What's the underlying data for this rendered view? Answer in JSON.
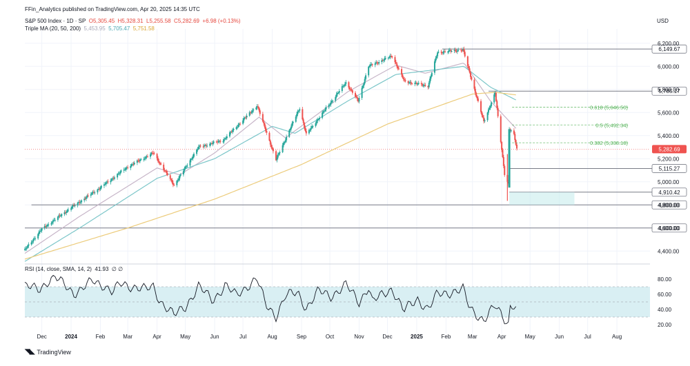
{
  "header": {
    "published_line": "FFin_Analytics published on TradingView.com, Apr 20, 2025 14:35 UTC",
    "symbol": "S&P 500 Index · 1D · SP",
    "open": "O5,305.45",
    "high": "H5,328.31",
    "low": "L5,255.58",
    "close": "C5,282.69",
    "change": "+6.98 (+0.13%)",
    "ma_label": "Triple MA (20, 50, 200)",
    "ma20_value": "5,453.95",
    "ma50_value": "5,705.47",
    "ma200_value": "5,751.58",
    "currency": "USD",
    "rsi_label": "RSI (14, close, SMA, 14, 2)",
    "rsi_value": "41.93",
    "rsi_suffix": "∅ ∅"
  },
  "footer": {
    "brand": "TradingView"
  },
  "colors": {
    "up": "#26a69a",
    "down": "#ef5350",
    "ma20": "#c7b5c8",
    "ma50": "#7cc6c9",
    "ma200": "#eccb7a",
    "fib": "#4caf50",
    "rsi_band": "#d9eff3",
    "level": "#787b86"
  },
  "chart_data": [
    {
      "type": "candlestick",
      "title": "S&P 500 Index · 1D",
      "ylabel": "USD",
      "ylim": [
        4300,
        6300
      ],
      "x_dates": [
        "2023-11-13",
        "2025-09-05"
      ],
      "yticks": [
        "4,400.00",
        "4,600.00",
        "4,800.00",
        "5,000.00",
        "5,200.00",
        "5,400.00",
        "5,600.00",
        "5,800.00",
        "6,000.00",
        "6,200.00"
      ],
      "ytick_values": [
        4400,
        4600,
        4800,
        5000,
        5200,
        5400,
        5600,
        5800,
        6000,
        6200
      ],
      "month_labels": [
        {
          "label": "Dec",
          "date": "2023-12-01"
        },
        {
          "label": "2024",
          "date": "2024-01-01"
        },
        {
          "label": "Feb",
          "date": "2024-02-01"
        },
        {
          "label": "Mar",
          "date": "2024-03-01"
        },
        {
          "label": "Apr",
          "date": "2024-04-01"
        },
        {
          "label": "May",
          "date": "2024-05-01"
        },
        {
          "label": "Jun",
          "date": "2024-06-01"
        },
        {
          "label": "Jul",
          "date": "2024-07-01"
        },
        {
          "label": "Aug",
          "date": "2024-08-01"
        },
        {
          "label": "Sep",
          "date": "2024-09-01"
        },
        {
          "label": "Oct",
          "date": "2024-10-01"
        },
        {
          "label": "Nov",
          "date": "2024-11-01"
        },
        {
          "label": "Dec",
          "date": "2024-12-01"
        },
        {
          "label": "2025",
          "date": "2025-01-01"
        },
        {
          "label": "Feb",
          "date": "2025-02-01"
        },
        {
          "label": "Mar",
          "date": "2025-03-01"
        },
        {
          "label": "Apr",
          "date": "2025-04-01"
        },
        {
          "label": "May",
          "date": "2025-05-01"
        },
        {
          "label": "Jun",
          "date": "2025-06-01"
        },
        {
          "label": "Jul",
          "date": "2025-07-01"
        },
        {
          "label": "Aug",
          "date": "2025-08-01"
        }
      ],
      "price_anchors": [
        [
          "2023-11-13",
          4410
        ],
        [
          "2023-12-01",
          4590
        ],
        [
          "2023-12-31",
          4770
        ],
        [
          "2024-02-01",
          4950
        ],
        [
          "2024-03-01",
          5130
        ],
        [
          "2024-03-28",
          5250
        ],
        [
          "2024-04-19",
          4970
        ],
        [
          "2024-05-15",
          5300
        ],
        [
          "2024-06-10",
          5360
        ],
        [
          "2024-07-16",
          5660
        ],
        [
          "2024-08-05",
          5190
        ],
        [
          "2024-08-30",
          5640
        ],
        [
          "2024-09-06",
          5410
        ],
        [
          "2024-10-18",
          5860
        ],
        [
          "2024-10-31",
          5700
        ],
        [
          "2024-11-11",
          6000
        ],
        [
          "2024-12-06",
          6090
        ],
        [
          "2024-12-19",
          5870
        ],
        [
          "2025-01-13",
          5830
        ],
        [
          "2025-01-23",
          6120
        ],
        [
          "2025-02-19",
          6144
        ],
        [
          "2025-03-13",
          5520
        ],
        [
          "2025-03-25",
          5770
        ],
        [
          "2025-04-04",
          5070
        ],
        [
          "2025-04-08",
          4980
        ],
        [
          "2025-04-09",
          5456
        ],
        [
          "2025-04-14",
          5405
        ],
        [
          "2025-04-17",
          5283
        ]
      ],
      "moving_averages": [
        {
          "name": "MA20",
          "value": 5453.95,
          "anchors": [
            [
              "2023-11-13",
              4380
            ],
            [
              "2024-01-10",
              4700
            ],
            [
              "2024-04-01",
              5120
            ],
            [
              "2024-04-25",
              5060
            ],
            [
              "2024-06-01",
              5250
            ],
            [
              "2024-07-18",
              5560
            ],
            [
              "2024-08-15",
              5380
            ],
            [
              "2024-10-20",
              5780
            ],
            [
              "2024-12-10",
              6010
            ],
            [
              "2025-01-10",
              5940
            ],
            [
              "2025-02-20",
              6030
            ],
            [
              "2025-03-20",
              5700
            ],
            [
              "2025-04-17",
              5454
            ]
          ]
        },
        {
          "name": "MA50",
          "value": 5705.47,
          "anchors": [
            [
              "2023-11-13",
              4310
            ],
            [
              "2024-01-10",
              4600
            ],
            [
              "2024-04-01",
              5030
            ],
            [
              "2024-06-01",
              5200
            ],
            [
              "2024-08-01",
              5480
            ],
            [
              "2024-08-25",
              5420
            ],
            [
              "2024-10-20",
              5700
            ],
            [
              "2024-12-10",
              5930
            ],
            [
              "2025-02-20",
              6000
            ],
            [
              "2025-03-20",
              5820
            ],
            [
              "2025-04-17",
              5705
            ]
          ]
        },
        {
          "name": "MA200",
          "value": 5751.58,
          "anchors": [
            [
              "2023-11-13",
              4330
            ],
            [
              "2024-03-01",
              4600
            ],
            [
              "2024-06-01",
              4850
            ],
            [
              "2024-09-01",
              5150
            ],
            [
              "2024-12-01",
              5500
            ],
            [
              "2025-03-01",
              5760
            ],
            [
              "2025-03-25",
              5775
            ],
            [
              "2025-04-17",
              5752
            ]
          ]
        }
      ],
      "levels": [
        {
          "label": "6,149.67",
          "value": 6149.67,
          "from": "2025-01-28"
        },
        {
          "label": "5,785.17",
          "value": 5785.17,
          "from": "2025-03-18"
        },
        {
          "label": "5,115.27",
          "value": 5115.27,
          "from": "2025-04-09"
        },
        {
          "label": "4,910.42",
          "value": 4910.42,
          "from": "2025-04-09"
        },
        {
          "label": "4,800.00",
          "value": 4800,
          "from": "2023-11-20"
        },
        {
          "label": "4,600.00",
          "value": 4600,
          "from": "2023-11-13"
        }
      ],
      "fibonacci": [
        {
          "label": "0.618 (5,646.50)",
          "value": 5646.5
        },
        {
          "label": "0.5 (5,492.34)",
          "value": 5492.34
        },
        {
          "label": "0.382 (5,338.18)",
          "value": 5338.18
        }
      ],
      "last_price": {
        "label": "5,282.69",
        "value": 5282.69
      },
      "zone": {
        "from": "2025-04-09",
        "to": "2025-06-17",
        "low": 4800,
        "high": 4910.42
      }
    },
    {
      "type": "line",
      "title": "RSI (14, close, SMA, 14, 2)",
      "ylim": [
        10,
        90
      ],
      "yticks": [
        "20.00",
        "40.00",
        "60.00",
        "80.00"
      ],
      "ytick_values": [
        20,
        40,
        60,
        80
      ],
      "band": [
        30,
        70
      ],
      "midline": 50,
      "last_value": 41.93,
      "anchors": [
        [
          "2023-11-13",
          70
        ],
        [
          "2023-11-28",
          67
        ],
        [
          "2023-12-08",
          78
        ],
        [
          "2023-12-15",
          82
        ],
        [
          "2023-12-28",
          70
        ],
        [
          "2024-01-04",
          62
        ],
        [
          "2024-01-12",
          66
        ],
        [
          "2024-01-24",
          78
        ],
        [
          "2024-02-05",
          72
        ],
        [
          "2024-02-14",
          62
        ],
        [
          "2024-02-22",
          74
        ],
        [
          "2024-03-08",
          70
        ],
        [
          "2024-03-20",
          66
        ],
        [
          "2024-03-28",
          70
        ],
        [
          "2024-04-04",
          52
        ],
        [
          "2024-04-19",
          32
        ],
        [
          "2024-05-01",
          44
        ],
        [
          "2024-05-15",
          70
        ],
        [
          "2024-05-30",
          52
        ],
        [
          "2024-06-12",
          72
        ],
        [
          "2024-06-24",
          58
        ],
        [
          "2024-07-10",
          76
        ],
        [
          "2024-07-16",
          80
        ],
        [
          "2024-07-25",
          46
        ],
        [
          "2024-08-05",
          32
        ],
        [
          "2024-08-15",
          58
        ],
        [
          "2024-08-28",
          62
        ],
        [
          "2024-09-06",
          42
        ],
        [
          "2024-09-19",
          64
        ],
        [
          "2024-10-02",
          58
        ],
        [
          "2024-10-18",
          72
        ],
        [
          "2024-11-01",
          50
        ],
        [
          "2024-11-11",
          70
        ],
        [
          "2024-11-15",
          50
        ],
        [
          "2024-12-06",
          68
        ],
        [
          "2024-12-18",
          38
        ],
        [
          "2025-01-02",
          54
        ],
        [
          "2025-01-13",
          40
        ],
        [
          "2025-01-23",
          60
        ],
        [
          "2025-02-19",
          66
        ],
        [
          "2025-02-26",
          42
        ],
        [
          "2025-03-13",
          26
        ],
        [
          "2025-03-25",
          44
        ],
        [
          "2025-04-03",
          30
        ],
        [
          "2025-04-08",
          22
        ],
        [
          "2025-04-09",
          44
        ],
        [
          "2025-04-14",
          46
        ],
        [
          "2025-04-17",
          42
        ]
      ]
    }
  ]
}
